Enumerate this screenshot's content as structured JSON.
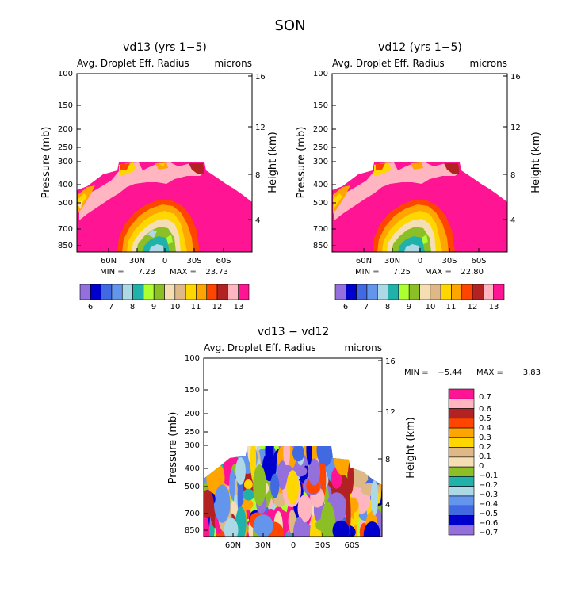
{
  "title": "SON",
  "colors": {
    "abs": [
      "#9370db",
      "#0000cd",
      "#4169e1",
      "#6495ed",
      "#add8e6",
      "#20b2aa",
      "#adff2f",
      "#8cbf26",
      "#f5deb3",
      "#deb887",
      "#ffd700",
      "#ffa500",
      "#ff4500",
      "#b22222",
      "#ffb6c1",
      "#ff1493"
    ],
    "diff": [
      "#9370db",
      "#0000cd",
      "#4169e1",
      "#6495ed",
      "#add8e6",
      "#20b2aa",
      "#8cbf26",
      "#f5deb3",
      "#deb887",
      "#ffd700",
      "#ffa500",
      "#ff4500",
      "#b22222",
      "#ffb6c1",
      "#ff1493"
    ]
  },
  "chart_data": [
    {
      "type": "heatmap",
      "title": "vd13 (yrs 1−5)",
      "subtitle": "Avg. Droplet Eff. Radius",
      "units": "microns",
      "ylabel": "Pressure (mb)",
      "y2label": "Height (km)",
      "pressure_ticks": [
        "100",
        "150",
        "200",
        "250",
        "300",
        "400",
        "500",
        "700",
        "850"
      ],
      "height_ticks": [
        "16",
        "12",
        "8",
        "4"
      ],
      "lat_ticks": [
        "60N",
        "30N",
        "0",
        "30S",
        "60S"
      ],
      "min_label": "MIN =",
      "min_value": "7.23",
      "max_label": "MAX =",
      "max_value": "23.73",
      "colorbar_labels": [
        "6",
        "7",
        "8",
        "9",
        "10",
        "11",
        "12",
        "13"
      ],
      "z_range": [
        6,
        13
      ]
    },
    {
      "type": "heatmap",
      "title": "vd12 (yrs 1−5)",
      "subtitle": "Avg. Droplet Eff. Radius",
      "units": "microns",
      "ylabel": "Pressure (mb)",
      "y2label": "Height (km)",
      "pressure_ticks": [
        "100",
        "150",
        "200",
        "250",
        "300",
        "400",
        "500",
        "700",
        "850"
      ],
      "height_ticks": [
        "16",
        "12",
        "8",
        "4"
      ],
      "lat_ticks": [
        "60N",
        "30N",
        "0",
        "30S",
        "60S"
      ],
      "min_label": "MIN =",
      "min_value": "7.25",
      "max_label": "MAX =",
      "max_value": "22.80",
      "colorbar_labels": [
        "6",
        "7",
        "8",
        "9",
        "10",
        "11",
        "12",
        "13"
      ],
      "z_range": [
        6,
        13
      ]
    },
    {
      "type": "heatmap",
      "title": "vd13 − vd12",
      "subtitle": "Avg. Droplet Eff. Radius",
      "units": "microns",
      "ylabel": "Pressure (mb)",
      "y2label": "Height (km)",
      "pressure_ticks": [
        "100",
        "150",
        "200",
        "250",
        "300",
        "400",
        "500",
        "700",
        "850"
      ],
      "height_ticks": [
        "16",
        "12",
        "8",
        "4"
      ],
      "lat_ticks": [
        "60N",
        "30N",
        "0",
        "30S",
        "60S"
      ],
      "min_label": "MIN =",
      "min_value": "−5.44",
      "max_label": "MAX =",
      "max_value": "3.83",
      "colorbar_labels": [
        "0.7",
        "0.6",
        "0.5",
        "0.4",
        "0.3",
        "0.2",
        "0.1",
        "0",
        "−0.1",
        "−0.2",
        "−0.3",
        "−0.4",
        "−0.5",
        "−0.6",
        "−0.7"
      ],
      "z_range": [
        -0.75,
        0.75
      ]
    }
  ]
}
